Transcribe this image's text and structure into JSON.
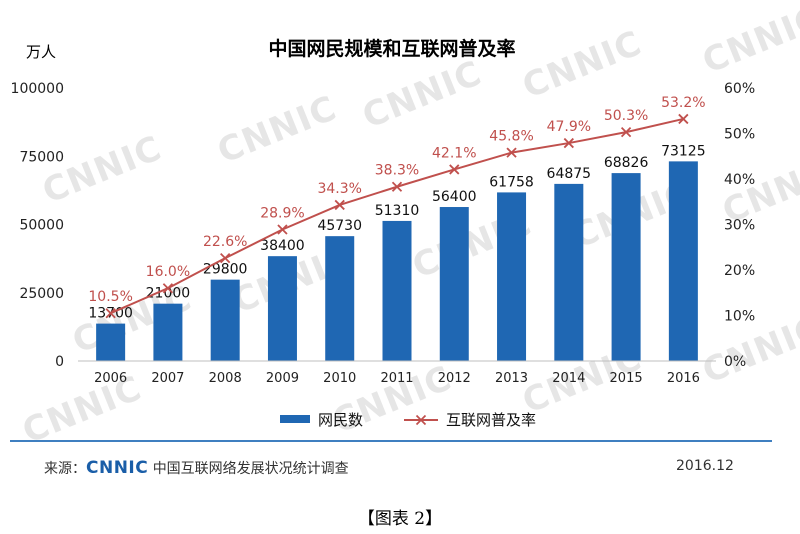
{
  "chart_data": {
    "type": "bar",
    "title": "中国网民规模和互联网普及率",
    "y_left_label": "万人",
    "categories": [
      "2006",
      "2007",
      "2008",
      "2009",
      "2010",
      "2011",
      "2012",
      "2013",
      "2014",
      "2015",
      "2016"
    ],
    "series": [
      {
        "name": "网民数",
        "type": "bar",
        "axis": "left",
        "color": "#1f67b3",
        "values": [
          13700,
          21000,
          29800,
          38400,
          45730,
          51310,
          56400,
          61758,
          64875,
          68826,
          73125
        ]
      },
      {
        "name": "互联网普及率",
        "type": "line",
        "axis": "right",
        "color": "#c0504d",
        "values": [
          10.5,
          16.0,
          22.6,
          28.9,
          34.3,
          38.3,
          42.1,
          45.8,
          47.9,
          50.3,
          53.2
        ],
        "labels": [
          "10.5%",
          "16.0%",
          "22.6%",
          "28.9%",
          "34.3%",
          "38.3%",
          "42.1%",
          "45.8%",
          "47.9%",
          "50.3%",
          "53.2%"
        ]
      }
    ],
    "ylim_left": [
      0,
      100000
    ],
    "yticks_left": [
      "0",
      "25000",
      "50000",
      "75000",
      "100000"
    ],
    "ylim_right": [
      0,
      60
    ],
    "yticks_right": [
      "0%",
      "10%",
      "20%",
      "30%",
      "40%",
      "50%",
      "60%"
    ],
    "legend_position": "bottom",
    "grid": false
  },
  "watermark": "CNNIC",
  "footer": {
    "source_prefix": "来源：",
    "source_logo": "CNNIC",
    "source_org": "中国互联网络发展状况统计调查",
    "date": "2016.12"
  },
  "caption": "【图表 2】"
}
